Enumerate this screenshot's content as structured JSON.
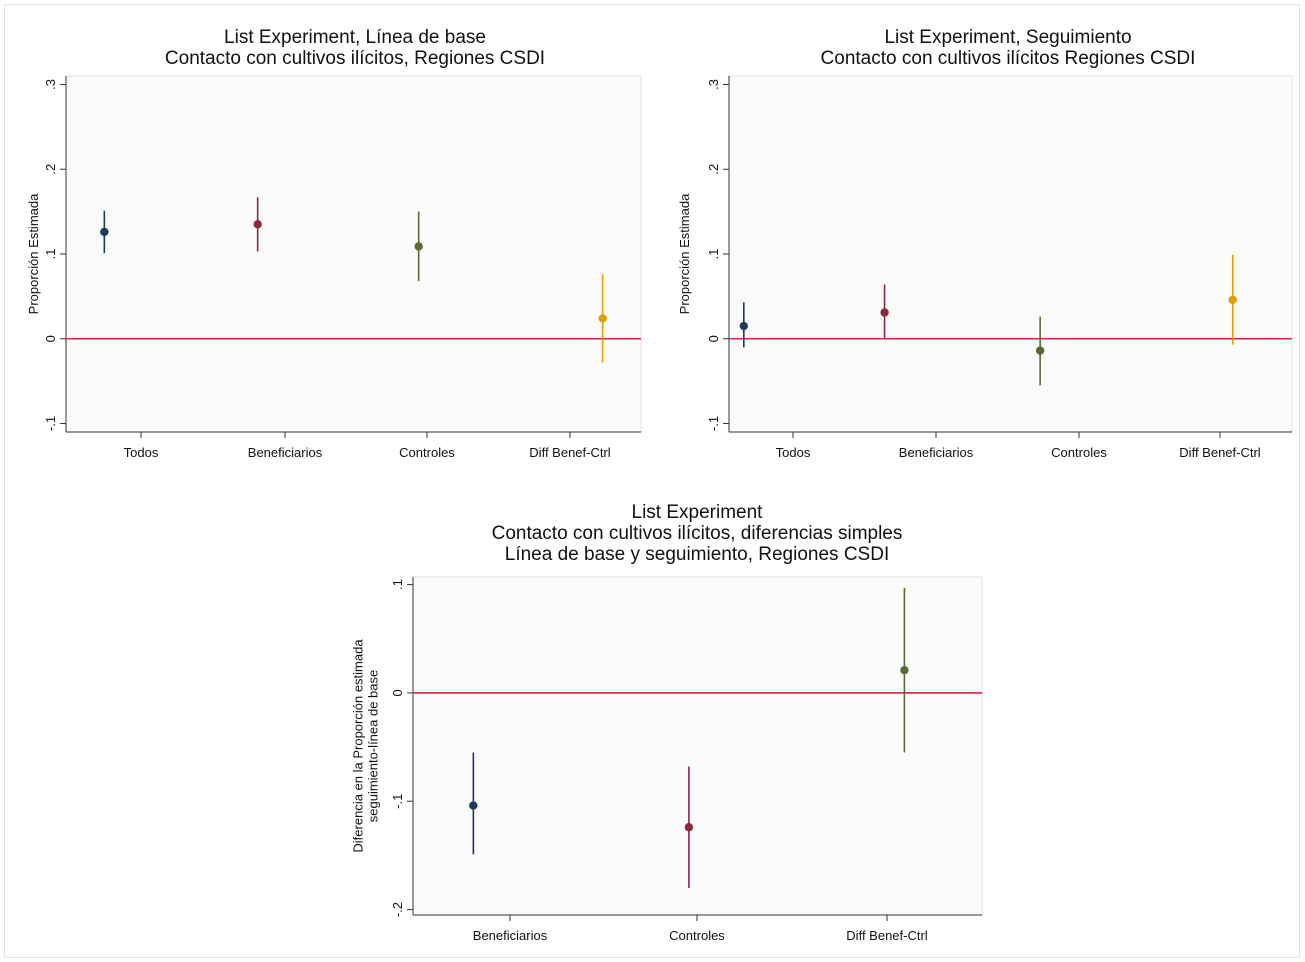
{
  "colors": {
    "refline": "#d6224a",
    "axis": "#333333",
    "frame": "#e0e0e0",
    "marker_palette": [
      "#1b3a5c",
      "#8b2a3e",
      "#5a6b32",
      "#e0a000"
    ]
  },
  "chart_data": [
    {
      "type": "scatter",
      "title": [
        "List Experiment, Línea de base",
        "Contacto con cultivos ilícitos, Regiones CSDI"
      ],
      "xlabel": "",
      "ylabel": [
        "Proporción Estimada"
      ],
      "ylim": [
        -0.11,
        0.31
      ],
      "yticks": [
        -0.1,
        0,
        0.1,
        0.2,
        0.3
      ],
      "ytick_labels": [
        "-.1",
        "0",
        ".1",
        ".2",
        ".3"
      ],
      "reference_line": 0,
      "grid": false,
      "categories": [
        "Todos",
        "Beneficiarios",
        "Controles",
        "Diff Benef-Ctrl"
      ],
      "points": [
        {
          "category": "Todos",
          "x": 0.05,
          "estimate": 0.126,
          "lower": 0.101,
          "upper": 0.151,
          "color": "#1b3a5c"
        },
        {
          "category": "Beneficiarios",
          "x": 1.05,
          "estimate": 0.135,
          "lower": 0.103,
          "upper": 0.167,
          "color": "#8b2a3e"
        },
        {
          "category": "Controles",
          "x": 2.1,
          "estimate": 0.109,
          "lower": 0.068,
          "upper": 0.15,
          "color": "#5a6b32"
        },
        {
          "category": "Diff Benef-Ctrl",
          "x": 3.3,
          "estimate": 0.024,
          "lower": -0.028,
          "upper": 0.076,
          "color": "#e0a000"
        }
      ]
    },
    {
      "type": "scatter",
      "title": [
        "List Experiment,  Seguimiento",
        "Contacto con cultivos ilícitos Regiones CSDI"
      ],
      "xlabel": "",
      "ylabel": [
        "Proporción Estimada"
      ],
      "ylim": [
        -0.11,
        0.31
      ],
      "yticks": [
        -0.1,
        0,
        0.1,
        0.2,
        0.3
      ],
      "ytick_labels": [
        "-.1",
        "0",
        ".1",
        ".2",
        ".3"
      ],
      "reference_line": 0,
      "grid": false,
      "categories": [
        "Todos",
        "Beneficiarios",
        "Controles",
        "Diff Benef-Ctrl"
      ],
      "points": [
        {
          "category": "Todos",
          "x": 0.0,
          "estimate": 0.015,
          "lower": -0.01,
          "upper": 0.043,
          "color": "#1b3a5c"
        },
        {
          "category": "Beneficiarios",
          "x": 0.95,
          "estimate": 0.031,
          "lower": 0.0,
          "upper": 0.064,
          "color": "#8b2a3e"
        },
        {
          "category": "Controles",
          "x": 2.0,
          "estimate": -0.014,
          "lower": -0.055,
          "upper": 0.026,
          "color": "#5a6b32"
        },
        {
          "category": "Diff Benef-Ctrl",
          "x": 3.3,
          "estimate": 0.046,
          "lower": -0.007,
          "upper": 0.099,
          "color": "#e0a000"
        }
      ]
    },
    {
      "type": "scatter",
      "title": [
        "List Experiment",
        "Contacto con cultivos ilícitos, diferencias simples",
        "Línea de base y seguimiento, Regiones CSDI"
      ],
      "xlabel": "",
      "ylabel": [
        "Diferencia en la Proporción estimada",
        "seguimiento-línea de base"
      ],
      "ylim": [
        -0.205,
        0.107
      ],
      "yticks": [
        -0.2,
        -0.1,
        0,
        0.1
      ],
      "ytick_labels": [
        "-.2",
        "-.1",
        "0",
        ".1"
      ],
      "reference_line": 0,
      "grid": false,
      "categories": [
        "Beneficiarios",
        "Controles",
        "Diff Benef-Ctrl"
      ],
      "points": [
        {
          "category": "Beneficiarios",
          "x": -0.25,
          "estimate": -0.104,
          "lower": -0.149,
          "upper": -0.055,
          "color": "#1b3a5c"
        },
        {
          "category": "Controles",
          "x": 1.0,
          "estimate": -0.124,
          "lower": -0.18,
          "upper": -0.068,
          "color": "#8b2a3e"
        },
        {
          "category": "Diff Benef-Ctrl",
          "x": 2.25,
          "estimate": 0.021,
          "lower": -0.055,
          "upper": 0.097,
          "color": "#5a6b32"
        }
      ]
    }
  ]
}
